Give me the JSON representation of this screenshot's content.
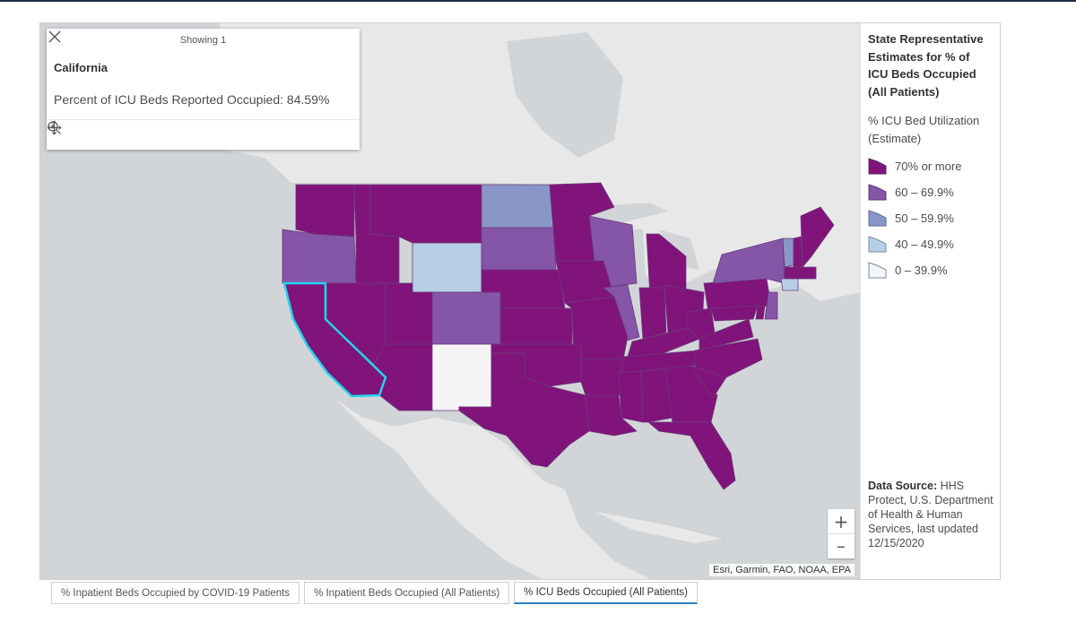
{
  "popup": {
    "header": "Showing 1",
    "title": "California",
    "field_label": "Percent of ICU Beds Reported Occupied:",
    "field_value": "84.59%",
    "icons": [
      "pan-icon",
      "zoom-to-icon",
      "close-icon"
    ]
  },
  "legend": {
    "title": "State Representative Estimates for % of ICU Beds Occupied (All Patients)",
    "subtitle": "% ICU Bed Utilization (Estimate)",
    "items": [
      {
        "label": "70% or more",
        "color": "#80147a"
      },
      {
        "label": "60 – 69.9%",
        "color": "#8555a8"
      },
      {
        "label": "50 – 59.9%",
        "color": "#8b96c8"
      },
      {
        "label": "40 – 49.9%",
        "color": "#b6cfe6"
      },
      {
        "label": "0 – 39.9%",
        "color": "#f5f5f5"
      }
    ],
    "source_label": "Data Source:",
    "source_text": "HHS Protect, U.S. Department of Health & Human Services, last updated 12/15/2020"
  },
  "map": {
    "attribution": "Esri, Garmin, FAO, NOAA, EPA",
    "zoom_in": "+",
    "zoom_out": "–",
    "selected_state": "California",
    "selection_color": "#22d3ee",
    "states_by_bin": {
      "70% or more": [
        "Washington",
        "Idaho",
        "Montana",
        "Nevada",
        "California",
        "Utah",
        "Arizona",
        "Nebraska",
        "Kansas",
        "Oklahoma",
        "Texas",
        "Minnesota",
        "Iowa",
        "Missouri",
        "Arkansas",
        "Louisiana",
        "Michigan",
        "Indiana",
        "Ohio",
        "Kentucky",
        "Tennessee",
        "Mississippi",
        "Alabama",
        "Georgia",
        "Florida",
        "South Carolina",
        "North Carolina",
        "Virginia",
        "West Virginia",
        "Pennsylvania",
        "Maryland",
        "Delaware",
        "Maine",
        "Massachusetts",
        "New Hampshire"
      ],
      "60 – 69.9%": [
        "Oregon",
        "Colorado",
        "South Dakota",
        "Wisconsin",
        "Illinois",
        "New York",
        "New Jersey"
      ],
      "50 – 59.9%": [
        "North Dakota",
        "Vermont"
      ],
      "40 – 49.9%": [
        "Wyoming",
        "Connecticut"
      ],
      "0 – 39.9%": [
        "New Mexico"
      ]
    }
  },
  "tabs": [
    {
      "label": "% Inpatient Beds Occupied by COVID-19 Patients",
      "active": false
    },
    {
      "label": "% Inpatient Beds Occupied (All Patients)",
      "active": false
    },
    {
      "label": "% ICU Beds Occupied (All Patients)",
      "active": true
    }
  ]
}
